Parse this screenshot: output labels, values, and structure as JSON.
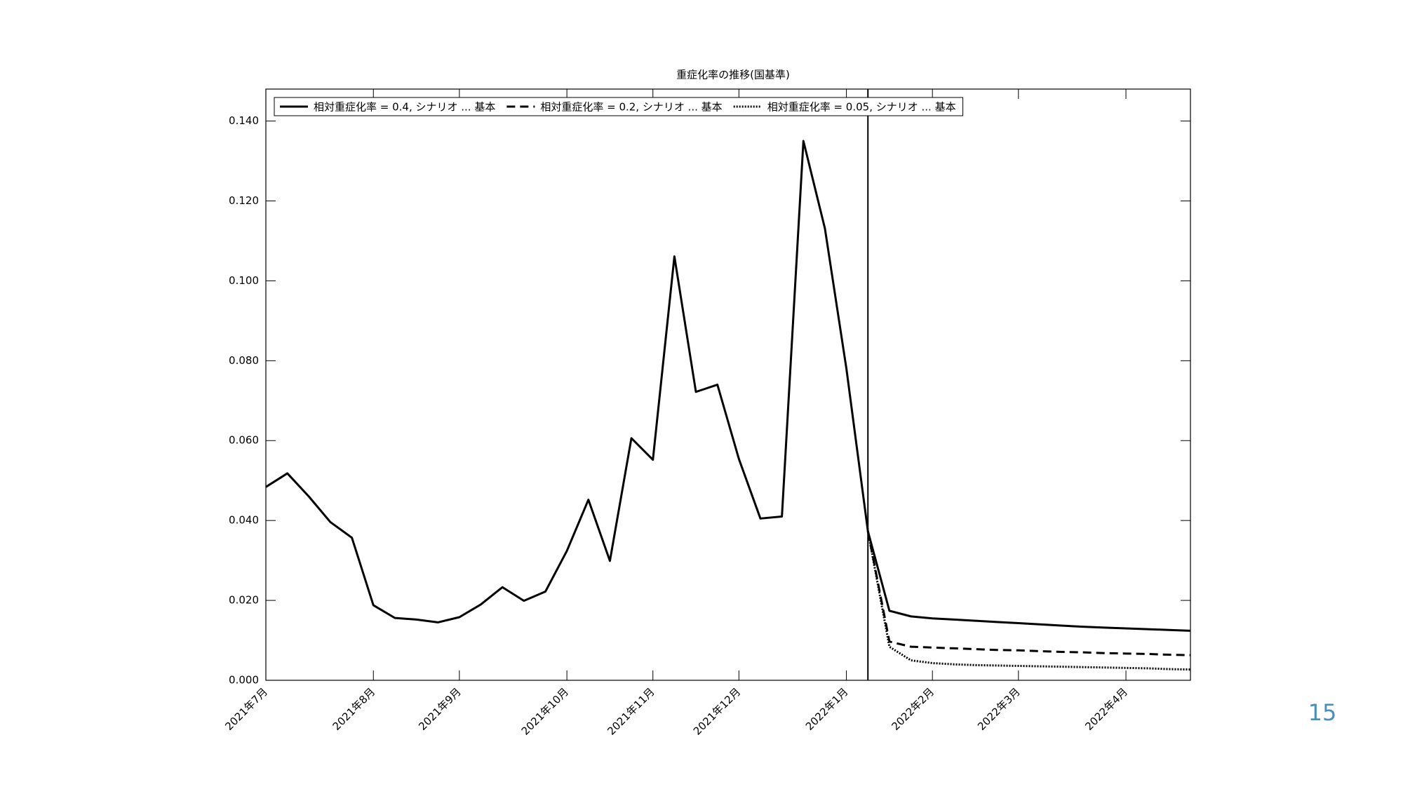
{
  "page_number": "15",
  "chart_data": {
    "type": "line",
    "title": "重症化率の推移(国基準)",
    "categories": [
      "2021年7月",
      null,
      null,
      null,
      null,
      "2021年8月",
      null,
      null,
      null,
      "2021年9月",
      null,
      null,
      null,
      null,
      "2021年10月",
      null,
      null,
      null,
      "2021年11月",
      null,
      null,
      null,
      "2021年12月",
      null,
      null,
      null,
      null,
      "2022年1月",
      null,
      null,
      null,
      "2022年2月",
      null,
      null,
      null,
      "2022年3月",
      null,
      null,
      null,
      null,
      "2022年4月",
      null,
      null,
      null
    ],
    "series": [
      {
        "name": "相対重症化率 = 0.4, シナリオ ... 基本",
        "color": "#000000",
        "dash": "solid",
        "values": [
          0.0484,
          0.0518,
          0.046,
          0.0396,
          0.0357,
          0.0188,
          0.0156,
          0.0152,
          0.0145,
          0.0158,
          0.019,
          0.0233,
          0.0199,
          0.0222,
          0.0324,
          0.0452,
          0.0299,
          0.0606,
          0.0552,
          0.1061,
          0.0722,
          0.074,
          0.0554,
          0.0405,
          0.041,
          0.135,
          0.1131,
          0.078,
          0.0373,
          0.0174,
          0.016,
          0.0155,
          0.0152,
          0.0149,
          0.0146,
          0.0143,
          0.014,
          0.0137,
          0.0134,
          0.0132,
          0.013,
          0.0128,
          0.0126,
          0.0124
        ]
      },
      {
        "name": "相対重症化率 = 0.2, シナリオ ... 基本",
        "color": "#000000",
        "dash": "dashed",
        "values": [
          null,
          null,
          null,
          null,
          null,
          null,
          null,
          null,
          null,
          null,
          null,
          null,
          null,
          null,
          null,
          null,
          null,
          null,
          null,
          null,
          null,
          null,
          null,
          null,
          null,
          null,
          null,
          null,
          0.0373,
          0.0097,
          0.0084,
          0.0082,
          0.008,
          0.0078,
          0.0076,
          0.0075,
          0.0073,
          0.0071,
          0.007,
          0.0068,
          0.0067,
          0.0066,
          0.0064,
          0.0063
        ]
      },
      {
        "name": "相対重症化率 = 0.05, シナリオ ... 基本",
        "color": "#000000",
        "dash": "dotted",
        "values": [
          null,
          null,
          null,
          null,
          null,
          null,
          null,
          null,
          null,
          null,
          null,
          null,
          null,
          null,
          null,
          null,
          null,
          null,
          null,
          null,
          null,
          null,
          null,
          null,
          null,
          null,
          null,
          null,
          0.0373,
          0.0084,
          0.005,
          0.0043,
          0.004,
          0.0038,
          0.0037,
          0.0036,
          0.0035,
          0.0034,
          0.0033,
          0.0032,
          0.0031,
          0.003,
          0.0028,
          0.0027
        ]
      }
    ],
    "marker_index": 28,
    "ylim": [
      0,
      0.148
    ],
    "yticks": [
      {
        "value": 0,
        "label": "0.000"
      },
      {
        "value": 0.02,
        "label": "0.020"
      },
      {
        "value": 0.04,
        "label": "0.040"
      },
      {
        "value": 0.06,
        "label": "0.060"
      },
      {
        "value": 0.08,
        "label": "0.080"
      },
      {
        "value": 0.1,
        "label": "0.100"
      },
      {
        "value": 0.12,
        "label": "0.120"
      },
      {
        "value": 0.14,
        "label": "0.140"
      }
    ],
    "legend": "top-left"
  }
}
